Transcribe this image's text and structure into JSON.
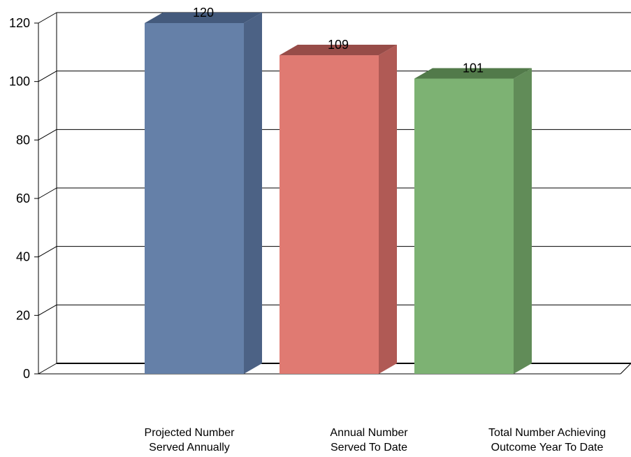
{
  "chart_data": {
    "type": "bar",
    "title": "",
    "xlabel": "",
    "ylabel": "",
    "ylim": [
      0,
      120
    ],
    "yticks": [
      0,
      20,
      40,
      60,
      80,
      100,
      120
    ],
    "grid": true,
    "style": "3d-column",
    "categories": [
      [
        "Projected Number",
        "Served Annually"
      ],
      [
        "Annual Number",
        "Served To Date"
      ],
      [
        "Total Number Achieving",
        "Outcome Year To Date"
      ]
    ],
    "values": [
      120,
      109,
      101
    ],
    "data_labels": [
      "120",
      "109",
      "101"
    ],
    "colors": [
      {
        "front": "#6580a8",
        "side": "#4c6285",
        "top": "#445a7c"
      },
      {
        "front": "#e07a72",
        "side": "#b05a55",
        "top": "#974c48"
      },
      {
        "front": "#7db273",
        "side": "#618c58",
        "top": "#527a4a"
      }
    ]
  }
}
